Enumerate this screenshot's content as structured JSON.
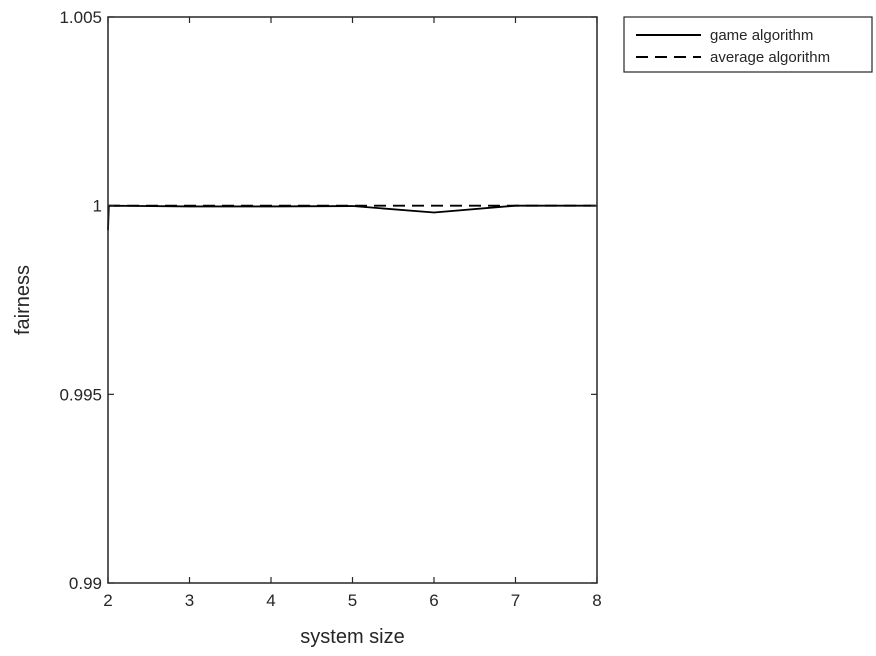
{
  "chart_data": {
    "type": "line",
    "title": "",
    "xlabel": "system size",
    "ylabel": "fairness",
    "xlim": [
      2,
      8
    ],
    "ylim": [
      0.99,
      1.005
    ],
    "xticks": [
      2,
      3,
      4,
      5,
      6,
      7,
      8
    ],
    "xtick_labels": [
      "2",
      "3",
      "4",
      "5",
      "6",
      "7",
      "8"
    ],
    "yticks": [
      0.99,
      0.995,
      1,
      1.005
    ],
    "ytick_labels": [
      "0.99",
      "0.995",
      "1",
      "1.005"
    ],
    "grid": false,
    "legend_position": "outside-top-right",
    "series": [
      {
        "name": "game algorithm",
        "style": "solid",
        "color": "#000000",
        "x": [
          2,
          2.01,
          3,
          4,
          5,
          6,
          7,
          8
        ],
        "y": [
          0.99935,
          1.0,
          0.99998,
          0.99998,
          0.99999,
          0.99982,
          1.0,
          1.0
        ]
      },
      {
        "name": "average algorithm",
        "style": "dashed",
        "color": "#000000",
        "x": [
          2,
          3,
          4,
          5,
          6,
          7,
          8
        ],
        "y": [
          1.0,
          1.0,
          1.0,
          1.0,
          1.0,
          1.0,
          1.0
        ]
      }
    ]
  }
}
